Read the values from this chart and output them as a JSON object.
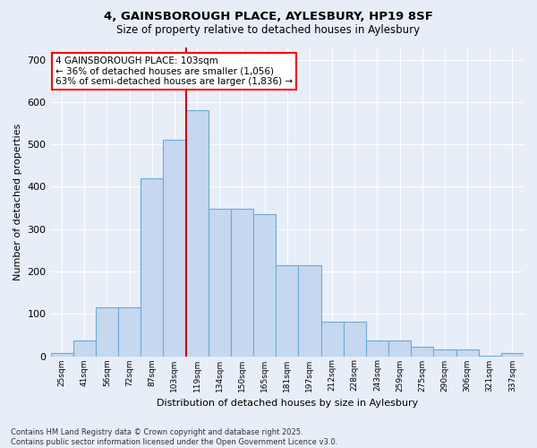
{
  "title1": "4, GAINSBOROUGH PLACE, AYLESBURY, HP19 8SF",
  "title2": "Size of property relative to detached houses in Aylesbury",
  "xlabel": "Distribution of detached houses by size in Aylesbury",
  "ylabel": "Number of detached properties",
  "categories": [
    "25sqm",
    "41sqm",
    "56sqm",
    "72sqm",
    "87sqm",
    "103sqm",
    "119sqm",
    "134sqm",
    "150sqm",
    "165sqm",
    "181sqm",
    "197sqm",
    "212sqm",
    "228sqm",
    "243sqm",
    "259sqm",
    "275sqm",
    "290sqm",
    "306sqm",
    "321sqm",
    "337sqm"
  ],
  "bar_values": [
    8,
    38,
    115,
    115,
    420,
    510,
    580,
    348,
    348,
    335,
    215,
    215,
    82,
    82,
    38,
    38,
    22,
    15,
    15,
    2,
    8
  ],
  "bar_color": "#c5d8f0",
  "bar_edge_color": "#6aaad4",
  "vline_color": "#cc0000",
  "annotation_text": "4 GAINSBOROUGH PLACE: 103sqm\n← 36% of detached houses are smaller (1,056)\n63% of semi-detached houses are larger (1,836) →",
  "yticks": [
    0,
    100,
    200,
    300,
    400,
    500,
    600,
    700
  ],
  "ylim": [
    0,
    730
  ],
  "footnote": "Contains HM Land Registry data © Crown copyright and database right 2025.\nContains public sector information licensed under the Open Government Licence v3.0.",
  "bg_color": "#e8eef8",
  "plot_bg": "#e8eef8",
  "grid_color": "#ffffff"
}
